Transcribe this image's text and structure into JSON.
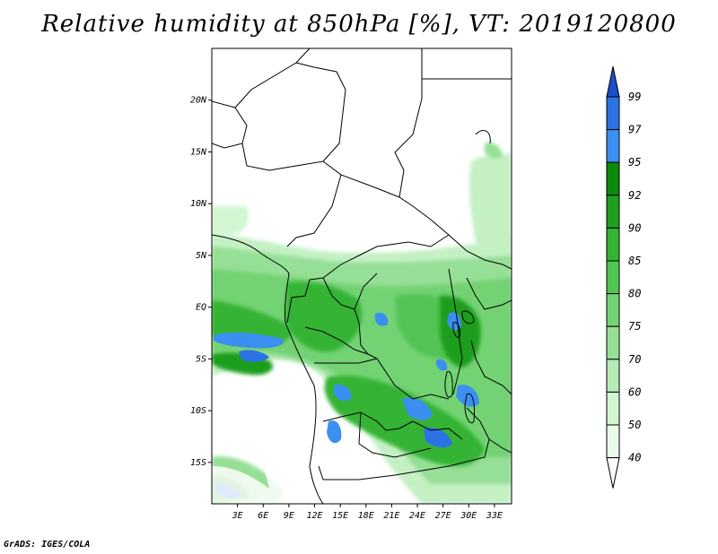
{
  "title": "Relative humidity at 850hPa [%], VT: 2019120800",
  "credit": "GrADS: IGES/COLA",
  "map": {
    "lat_labels": [
      "20N",
      "15N",
      "10N",
      "5N",
      "EQ",
      "5S",
      "10S",
      "15S"
    ],
    "lat_values": [
      20,
      15,
      10,
      5,
      0,
      -5,
      -10,
      -15
    ],
    "lon_labels": [
      "3E",
      "6E",
      "9E",
      "12E",
      "15E",
      "18E",
      "21E",
      "24E",
      "27E",
      "30E",
      "33E"
    ],
    "lon_values": [
      3,
      6,
      9,
      12,
      15,
      18,
      21,
      24,
      27,
      30,
      33
    ],
    "extent": {
      "lon_min": 0,
      "lon_max": 35,
      "lat_min": -19,
      "lat_max": 25
    }
  },
  "colorbar": {
    "labels": [
      "99",
      "97",
      "95",
      "92",
      "90",
      "85",
      "80",
      "75",
      "70",
      "60",
      "50",
      "40"
    ],
    "colors": [
      "#1a4fc8",
      "#2c72e4",
      "#3b8ff0",
      "#0b8a0b",
      "#1f9e1f",
      "#35b335",
      "#52c452",
      "#73d273",
      "#96df96",
      "#b6ebb6",
      "#d2f5d2",
      "#ebfbeb",
      "#ffffff"
    ]
  }
}
